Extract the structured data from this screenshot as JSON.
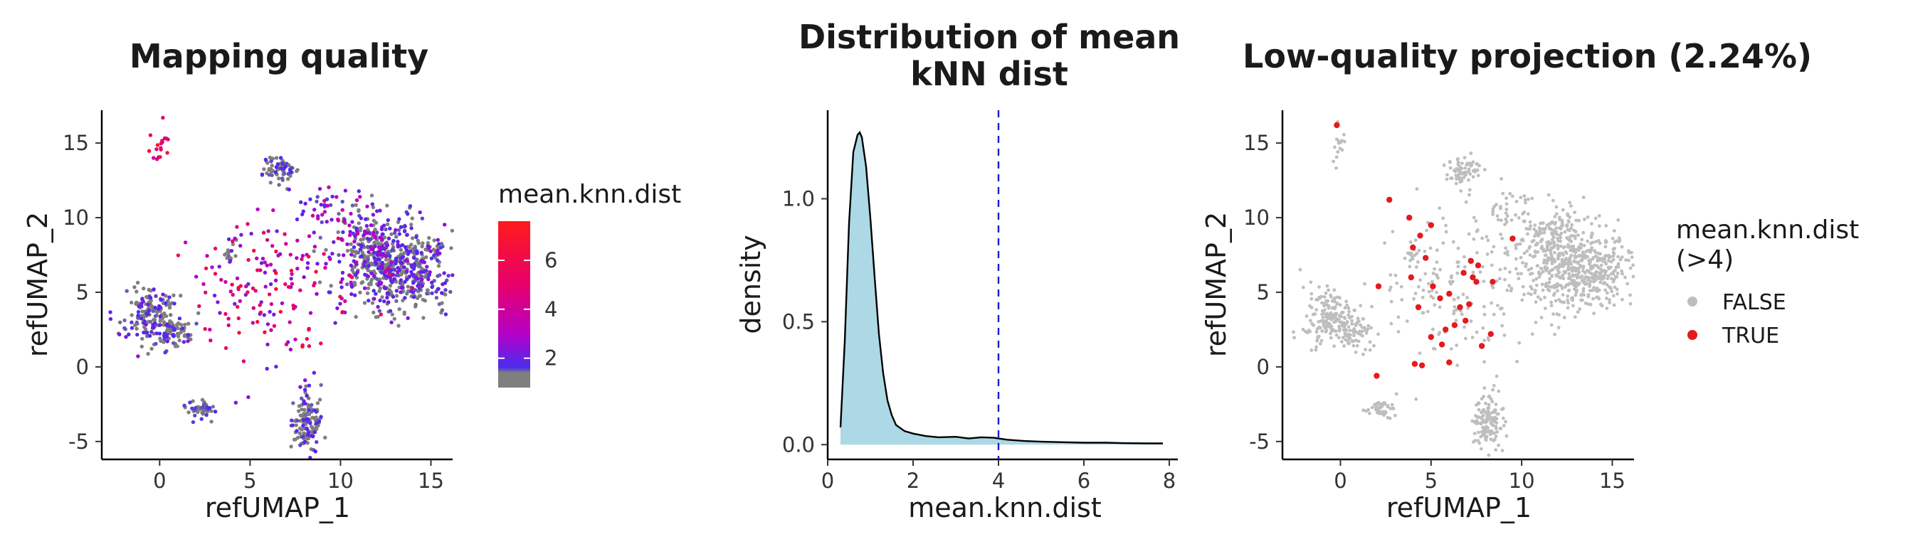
{
  "chart_data": [
    {
      "type": "scatter",
      "title": "Mapping quality",
      "xlabel": "refUMAP_1",
      "ylabel": "refUMAP_2",
      "xlim": [
        -3.2,
        16.2
      ],
      "ylim": [
        -6.2,
        17.2
      ],
      "xticks": [
        0,
        5,
        10,
        15
      ],
      "yticks": [
        -5,
        0,
        5,
        10,
        15
      ],
      "grid": false,
      "color_by": "mean.knn.dist",
      "legend": {
        "title": "mean.knn.dist",
        "type": "colorbar",
        "ticks": [
          2,
          4,
          6
        ],
        "range": [
          0.8,
          7.6
        ],
        "colors": [
          "#7f7f7f",
          "#4b2cf0",
          "#b400c8",
          "#e8006a",
          "#ff1a1a"
        ]
      },
      "clusters": [
        {
          "x": 13.2,
          "y": 6.6,
          "sx": 1.5,
          "sy": 1.4,
          "n": 520,
          "values": [
            0.8,
            2.4
          ]
        },
        {
          "x": 11.6,
          "y": 8.6,
          "sx": 0.9,
          "sy": 1.1,
          "n": 140,
          "values": [
            0.8,
            3.0
          ]
        },
        {
          "x": 6.7,
          "y": 13.2,
          "sx": 0.5,
          "sy": 0.5,
          "n": 70,
          "values": [
            0.8,
            2.0
          ]
        },
        {
          "x": -0.5,
          "y": 3.5,
          "sx": 0.8,
          "sy": 1.0,
          "n": 180,
          "values": [
            0.8,
            2.2
          ]
        },
        {
          "x": 0.9,
          "y": 2.4,
          "sx": 0.5,
          "sy": 0.5,
          "n": 55,
          "values": [
            0.8,
            2.0
          ]
        },
        {
          "x": 8.2,
          "y": -3.6,
          "sx": 0.4,
          "sy": 1.0,
          "n": 130,
          "values": [
            0.8,
            2.0
          ]
        },
        {
          "x": 2.3,
          "y": -2.9,
          "sx": 0.4,
          "sy": 0.3,
          "n": 45,
          "values": [
            0.8,
            1.8
          ]
        },
        {
          "x": 3.9,
          "y": 7.5,
          "sx": 0.2,
          "sy": 0.4,
          "n": 14,
          "values": [
            0.8,
            2.0
          ]
        },
        {
          "x": 6.5,
          "y": 5.5,
          "sx": 2.6,
          "sy": 2.6,
          "n": 190,
          "values": [
            2.0,
            6.5
          ]
        },
        {
          "x": -0.1,
          "y": 15.0,
          "sx": 0.3,
          "sy": 0.8,
          "n": 18,
          "values": [
            3.5,
            7.0
          ]
        },
        {
          "x": 9.3,
          "y": 10.6,
          "sx": 0.7,
          "sy": 0.7,
          "n": 30,
          "values": [
            1.5,
            4.0
          ]
        }
      ]
    },
    {
      "type": "area",
      "title": "Distribution of mean\nkNN dist",
      "xlabel": "mean.knn.dist",
      "ylabel": "density",
      "xlim": [
        0,
        8.2
      ],
      "ylim": [
        -0.06,
        1.36
      ],
      "xticks": [
        0,
        2,
        4,
        6,
        8
      ],
      "yticks": [
        0.0,
        0.5,
        1.0
      ],
      "grid": false,
      "threshold": 4,
      "x": [
        0.3,
        0.4,
        0.5,
        0.6,
        0.7,
        0.75,
        0.8,
        0.9,
        1.0,
        1.1,
        1.2,
        1.3,
        1.4,
        1.5,
        1.6,
        1.8,
        2.0,
        2.3,
        2.6,
        3.0,
        3.3,
        3.6,
        3.9,
        4.2,
        4.6,
        5.0,
        5.5,
        6.0,
        6.5,
        7.0,
        7.5,
        7.85
      ],
      "y": [
        0.07,
        0.42,
        0.9,
        1.19,
        1.26,
        1.27,
        1.25,
        1.13,
        0.92,
        0.68,
        0.45,
        0.29,
        0.18,
        0.12,
        0.08,
        0.055,
        0.045,
        0.035,
        0.03,
        0.032,
        0.025,
        0.03,
        0.028,
        0.02,
        0.015,
        0.012,
        0.01,
        0.008,
        0.008,
        0.006,
        0.005,
        0.005
      ],
      "fill_color": "#add8e6",
      "line_color": "#000000",
      "threshold_color": "#1c1cd0"
    },
    {
      "type": "scatter",
      "title": "Low-quality projection (2.24%)",
      "xlabel": "refUMAP_1",
      "ylabel": "refUMAP_2",
      "xlim": [
        -3.2,
        16.2
      ],
      "ylim": [
        -6.2,
        17.2
      ],
      "xticks": [
        0,
        5,
        10,
        15
      ],
      "yticks": [
        -5,
        0,
        5,
        10,
        15
      ],
      "grid": false,
      "legend": {
        "title": "mean.knn.dist\n(>4)",
        "items": [
          {
            "label": "FALSE",
            "color": "#bebebe"
          },
          {
            "label": "TRUE",
            "color": "#e41a1c"
          }
        ]
      },
      "clusters": [
        {
          "x": 13.2,
          "y": 6.6,
          "sx": 1.5,
          "sy": 1.4,
          "n": 520
        },
        {
          "x": 11.6,
          "y": 8.6,
          "sx": 0.9,
          "sy": 1.1,
          "n": 140
        },
        {
          "x": 6.7,
          "y": 13.2,
          "sx": 0.5,
          "sy": 0.5,
          "n": 70
        },
        {
          "x": -0.5,
          "y": 3.5,
          "sx": 0.8,
          "sy": 1.0,
          "n": 180
        },
        {
          "x": 0.9,
          "y": 2.4,
          "sx": 0.5,
          "sy": 0.5,
          "n": 55
        },
        {
          "x": 8.2,
          "y": -3.6,
          "sx": 0.4,
          "sy": 1.0,
          "n": 130
        },
        {
          "x": 2.3,
          "y": -2.9,
          "sx": 0.4,
          "sy": 0.3,
          "n": 45
        },
        {
          "x": 3.9,
          "y": 7.5,
          "sx": 0.2,
          "sy": 0.4,
          "n": 14
        },
        {
          "x": 6.5,
          "y": 5.5,
          "sx": 2.6,
          "sy": 2.6,
          "n": 170
        },
        {
          "x": -0.1,
          "y": 15.0,
          "sx": 0.3,
          "sy": 0.8,
          "n": 17
        },
        {
          "x": 9.3,
          "y": 10.6,
          "sx": 0.7,
          "sy": 0.7,
          "n": 30
        }
      ],
      "highlighted_points": [
        [
          -0.2,
          16.2
        ],
        [
          2.7,
          11.2
        ],
        [
          3.8,
          10.0
        ],
        [
          5.0,
          9.5
        ],
        [
          4.4,
          8.8
        ],
        [
          4.0,
          8.0
        ],
        [
          4.7,
          7.3
        ],
        [
          3.9,
          6.0
        ],
        [
          5.1,
          5.4
        ],
        [
          5.5,
          4.6
        ],
        [
          6.0,
          4.9
        ],
        [
          6.8,
          6.3
        ],
        [
          7.3,
          6.0
        ],
        [
          7.5,
          5.7
        ],
        [
          7.2,
          7.1
        ],
        [
          7.6,
          6.8
        ],
        [
          8.4,
          5.7
        ],
        [
          9.5,
          8.6
        ],
        [
          4.3,
          4.0
        ],
        [
          6.6,
          4.0
        ],
        [
          7.1,
          4.2
        ],
        [
          5.0,
          2.0
        ],
        [
          5.8,
          2.5
        ],
        [
          6.3,
          2.8
        ],
        [
          5.6,
          1.5
        ],
        [
          7.8,
          1.4
        ],
        [
          6.9,
          3.1
        ],
        [
          4.1,
          0.2
        ],
        [
          4.5,
          0.1
        ],
        [
          6.0,
          0.3
        ],
        [
          2.0,
          -0.6
        ],
        [
          8.3,
          2.2
        ],
        [
          2.1,
          5.4
        ]
      ]
    }
  ]
}
